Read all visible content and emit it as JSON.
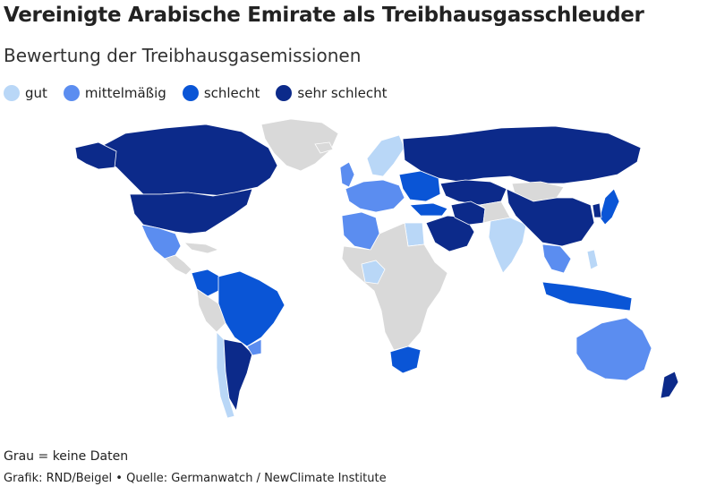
{
  "header": {
    "title": "Vereinigte Arabische Emirate als Treibhausgasschleuder",
    "subtitle": "Bewertung der Treibhausgasemissionen"
  },
  "legend": [
    {
      "label": "gut",
      "color": "#b9d7f7"
    },
    {
      "label": "mittelmäßig",
      "color": "#5b8df0"
    },
    {
      "label": "schlecht",
      "color": "#0a55d6"
    },
    {
      "label": "sehr schlecht",
      "color": "#0c2a8a"
    }
  ],
  "map": {
    "no_data_color": "#d9d9d9"
  },
  "footer": {
    "note": "Grau = keine Daten",
    "credit": "Grafik: RND/Beigel • Quelle: Germanwatch / NewClimate Institute"
  }
}
